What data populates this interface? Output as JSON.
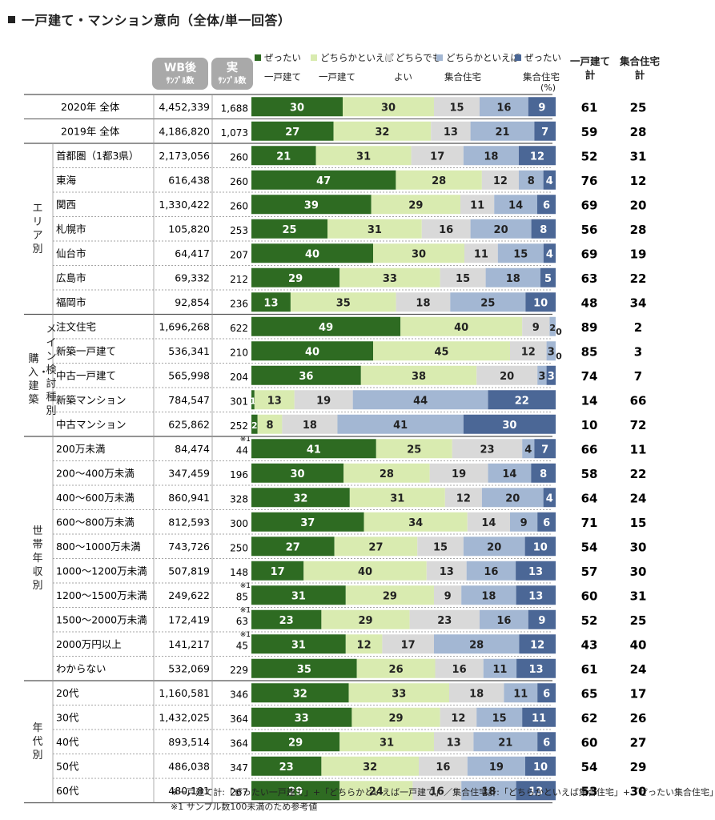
{
  "title": "一戸建て・マンション意向（全体/単一回答）",
  "legend": [
    {
      "line1": "ぜったい",
      "line2": "一戸建て",
      "color": "#2e6b22"
    },
    {
      "line1": "どちらかといえば",
      "line2": "一戸建て",
      "color": "#d9ebb0"
    },
    {
      "line1": "どちらでも",
      "line2": "よい",
      "color": "#d9d9d9"
    },
    {
      "line1": "どちらかといえば",
      "line2": "集合住宅",
      "color": "#a3b7d3"
    },
    {
      "line1": "ぜったい",
      "line2": "集合住宅",
      "color": "#4b6796"
    }
  ],
  "headers": {
    "wb_title": "WB後",
    "wb_sub": "ｻﾝﾌﾟﾙ数",
    "real_title": "実",
    "real_sub": "ｻﾝﾌﾟﾙ数",
    "sum1": "一戸建て計",
    "sum1_l1": "一戸建て",
    "sum1_l2": "計",
    "sum2_l1": "集合住宅",
    "sum2_l2": "計",
    "pct": "(%)"
  },
  "groups": [
    {
      "label": "エリア別",
      "chars": [
        "エ",
        "リ",
        "ア",
        "別"
      ]
    },
    {
      "label": "メイン検討種別",
      "chars": [
        "メ",
        "イ",
        "ン",
        "検",
        "討",
        "種",
        "別"
      ]
    },
    {
      "label": "購入・建築",
      "chars": [
        "購",
        "入",
        "・",
        "建",
        "築"
      ]
    },
    {
      "label": "世帯年収別",
      "chars": [
        "世",
        "帯",
        "年",
        "収",
        "別"
      ]
    },
    {
      "label": "年代別",
      "chars": [
        "年",
        "代",
        "別"
      ]
    }
  ],
  "footnotes": [
    "※一戸建て計:「ぜったい一戸建て」+「どちらかといえば一戸建て」／集合住宅計:「どちらかといえば集合住宅」+「ぜったい集合住宅」",
    "※1 サンプル数100未満のため参考値"
  ],
  "chart_data": {
    "type": "bar",
    "stacked": true,
    "orientation": "horizontal",
    "unit": "%",
    "series_names": [
      "ぜったい一戸建て",
      "どちらかといえば一戸建て",
      "どちらでもよい",
      "どちらかといえば集合住宅",
      "ぜったい集合住宅"
    ],
    "rows": [
      {
        "label": "2020年 全体",
        "wb": "4,452,339",
        "n": "1,688",
        "values": [
          30,
          30,
          15,
          16,
          9
        ],
        "sum1": 61,
        "sum2": 25
      },
      {
        "label": "2019年 全体",
        "wb": "4,186,820",
        "n": "1,073",
        "values": [
          27,
          32,
          13,
          21,
          7
        ],
        "sum1": 59,
        "sum2": 28
      },
      {
        "label": "首都圏（1都3県）",
        "wb": "2,173,056",
        "n": "260",
        "values": [
          21,
          31,
          17,
          18,
          12
        ],
        "sum1": 52,
        "sum2": 31
      },
      {
        "label": "東海",
        "wb": "616,438",
        "n": "260",
        "values": [
          47,
          28,
          12,
          8,
          4
        ],
        "sum1": 76,
        "sum2": 12
      },
      {
        "label": "関西",
        "wb": "1,330,422",
        "n": "260",
        "values": [
          39,
          29,
          11,
          14,
          6
        ],
        "sum1": 69,
        "sum2": 20
      },
      {
        "label": "札幌市",
        "wb": "105,820",
        "n": "253",
        "values": [
          25,
          31,
          16,
          20,
          8
        ],
        "sum1": 56,
        "sum2": 28
      },
      {
        "label": "仙台市",
        "wb": "64,417",
        "n": "207",
        "values": [
          40,
          30,
          11,
          15,
          4
        ],
        "sum1": 69,
        "sum2": 19
      },
      {
        "label": "広島市",
        "wb": "69,332",
        "n": "212",
        "values": [
          29,
          33,
          15,
          18,
          5
        ],
        "sum1": 63,
        "sum2": 22
      },
      {
        "label": "福岡市",
        "wb": "92,854",
        "n": "236",
        "values": [
          13,
          35,
          18,
          25,
          10
        ],
        "sum1": 48,
        "sum2": 34
      },
      {
        "label": "注文住宅",
        "wb": "1,696,268",
        "n": "622",
        "values": [
          49,
          40,
          9,
          2,
          0
        ],
        "sum1": 89,
        "sum2": 2
      },
      {
        "label": "新築一戸建て",
        "wb": "536,341",
        "n": "210",
        "values": [
          40,
          45,
          12,
          3,
          0
        ],
        "sum1": 85,
        "sum2": 3
      },
      {
        "label": "中古一戸建て",
        "wb": "565,998",
        "n": "204",
        "values": [
          36,
          38,
          20,
          3,
          3
        ],
        "sum1": 74,
        "sum2": 7
      },
      {
        "label": "新築マンション",
        "wb": "784,547",
        "n": "301",
        "values": [
          1,
          13,
          19,
          44,
          22
        ],
        "sum1": 14,
        "sum2": 66
      },
      {
        "label": "中古マンション",
        "wb": "625,862",
        "n": "252",
        "values": [
          2,
          8,
          18,
          41,
          30
        ],
        "sum1": 10,
        "sum2": 72
      },
      {
        "label": "200万未満",
        "wb": "84,474",
        "n": "44",
        "note": "※1",
        "values": [
          41,
          25,
          23,
          4,
          7
        ],
        "sum1": 66,
        "sum2": 11
      },
      {
        "label": "200～400万未満",
        "wb": "347,459",
        "n": "196",
        "values": [
          30,
          28,
          19,
          14,
          8
        ],
        "sum1": 58,
        "sum2": 22
      },
      {
        "label": "400～600万未満",
        "wb": "860,941",
        "n": "328",
        "values": [
          32,
          31,
          12,
          20,
          4
        ],
        "sum1": 64,
        "sum2": 24
      },
      {
        "label": "600～800万未満",
        "wb": "812,593",
        "n": "300",
        "values": [
          37,
          34,
          14,
          9,
          6
        ],
        "sum1": 71,
        "sum2": 15
      },
      {
        "label": "800～1000万未満",
        "wb": "743,726",
        "n": "250",
        "values": [
          27,
          27,
          15,
          20,
          10
        ],
        "sum1": 54,
        "sum2": 30
      },
      {
        "label": "1000～1200万未満",
        "wb": "507,819",
        "n": "148",
        "values": [
          17,
          40,
          13,
          16,
          13
        ],
        "sum1": 57,
        "sum2": 30
      },
      {
        "label": "1200～1500万未満",
        "wb": "249,622",
        "n": "85",
        "note": "※1",
        "values": [
          31,
          29,
          9,
          18,
          13
        ],
        "sum1": 60,
        "sum2": 31
      },
      {
        "label": "1500～2000万未満",
        "wb": "172,419",
        "n": "63",
        "note": "※1",
        "values": [
          23,
          29,
          23,
          16,
          9
        ],
        "sum1": 52,
        "sum2": 25
      },
      {
        "label": "2000万円以上",
        "wb": "141,217",
        "n": "45",
        "note": "※1",
        "values": [
          31,
          12,
          17,
          28,
          12
        ],
        "sum1": 43,
        "sum2": 40
      },
      {
        "label": "わからない",
        "wb": "532,069",
        "n": "229",
        "values": [
          35,
          26,
          16,
          11,
          13
        ],
        "sum1": 61,
        "sum2": 24
      },
      {
        "label": "20代",
        "wb": "1,160,581",
        "n": "346",
        "values": [
          32,
          33,
          18,
          11,
          6
        ],
        "sum1": 65,
        "sum2": 17
      },
      {
        "label": "30代",
        "wb": "1,432,025",
        "n": "364",
        "values": [
          33,
          29,
          12,
          15,
          11
        ],
        "sum1": 62,
        "sum2": 26
      },
      {
        "label": "40代",
        "wb": "893,514",
        "n": "364",
        "values": [
          29,
          31,
          13,
          21,
          6
        ],
        "sum1": 60,
        "sum2": 27
      },
      {
        "label": "50代",
        "wb": "486,038",
        "n": "347",
        "values": [
          23,
          32,
          16,
          19,
          10
        ],
        "sum1": 54,
        "sum2": 29
      },
      {
        "label": "60代",
        "wb": "480,181",
        "n": "267",
        "values": [
          29,
          24,
          16,
          18,
          13
        ],
        "sum1": 53,
        "sum2": 30
      }
    ]
  }
}
